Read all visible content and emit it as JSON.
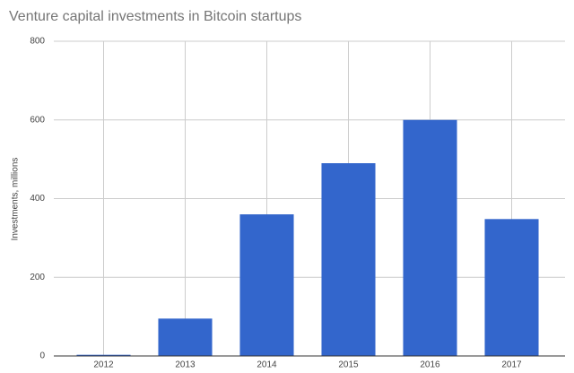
{
  "chart_data": {
    "type": "bar",
    "title": "Venture capital investments in Bitcoin startups",
    "y_label": "Investments, millions",
    "categories": [
      "2012",
      "2013",
      "2014",
      "2015",
      "2016",
      "2017"
    ],
    "values": [
      3,
      95,
      360,
      490,
      600,
      348
    ],
    "color": "#3366cc",
    "ylim": [
      0,
      800
    ],
    "yticks": [
      0,
      200,
      400,
      600,
      800
    ],
    "grid": true
  }
}
